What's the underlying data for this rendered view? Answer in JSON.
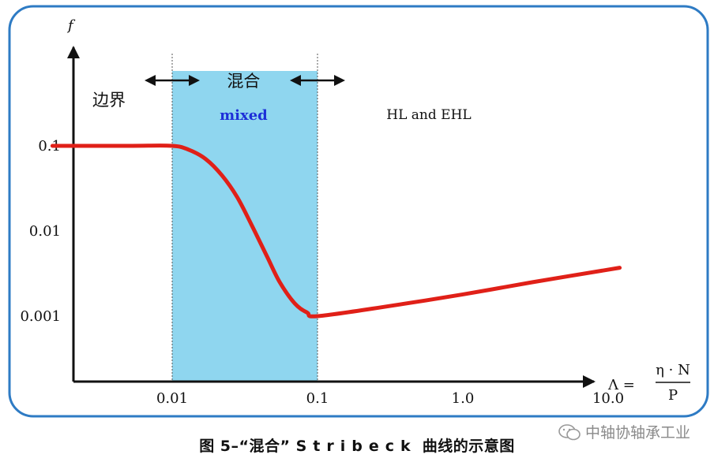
{
  "chart_data": {
    "type": "line",
    "ylabel": "f",
    "x_axis_label": "Λ =",
    "x_formula": {
      "numerator": "η · N",
      "denominator": "P"
    },
    "x_scale": "log",
    "y_scale": "log",
    "x_ticks": [
      "0.01",
      "0.1",
      "1.0",
      "10.0"
    ],
    "y_ticks": [
      "0.1",
      "0.01",
      "0.001"
    ],
    "xlim": [
      0.0013,
      20
    ],
    "ylim": [
      0.00015,
      1.2
    ],
    "regions": [
      {
        "label": "边界",
        "x_range": [
          0.0013,
          0.01
        ]
      },
      {
        "label": "混合",
        "sublabel": "mixed",
        "x_range": [
          0.01,
          0.1
        ],
        "color": "#8fd6ef"
      },
      {
        "label": "HL and EHL",
        "x_range": [
          0.1,
          20
        ]
      }
    ],
    "series": [
      {
        "color": "#e02018",
        "x": [
          0.0015,
          0.005,
          0.01,
          0.013,
          0.017,
          0.022,
          0.028,
          0.035,
          0.045,
          0.055,
          0.07,
          0.085,
          0.1,
          0.3,
          1.0,
          3.0,
          12.0
        ],
        "y": [
          0.1,
          0.1,
          0.1,
          0.09,
          0.07,
          0.045,
          0.025,
          0.012,
          0.005,
          0.0025,
          0.0014,
          0.0011,
          0.001,
          0.0013,
          0.0018,
          0.0025,
          0.0037
        ]
      }
    ]
  },
  "caption": {
    "prefix": "图 5–“混合”",
    "spaced": "Stribeck",
    "suffix": "曲线的示意图"
  },
  "watermark": "中轴协轴承工业",
  "colors": {
    "frame": "#2e7bc4",
    "region": "#8fd6ef",
    "curve": "#e02018",
    "mixed_label": "#1d2fd8"
  }
}
